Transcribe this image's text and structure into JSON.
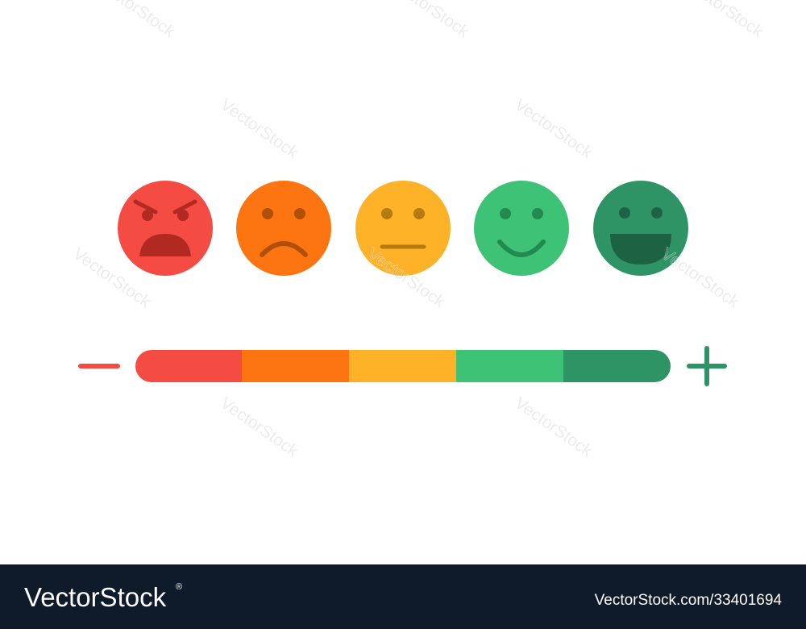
{
  "watermark": "VectorStock",
  "footer": {
    "brand": "VectorStock",
    "registered": "®",
    "url": "VectorStock.com/33401694"
  }
}
